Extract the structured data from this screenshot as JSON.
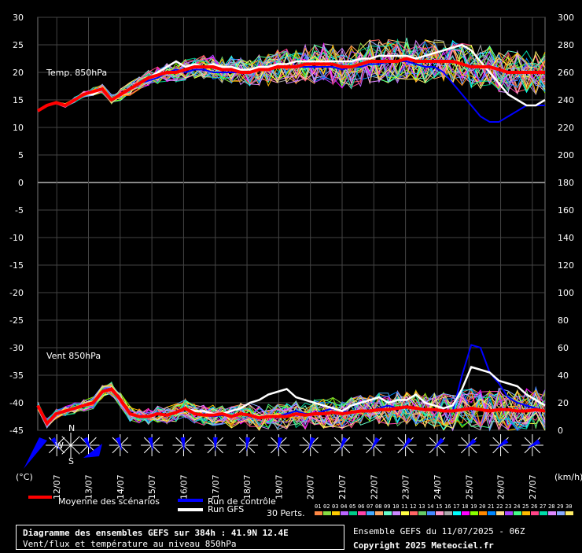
{
  "chart_data": {
    "type": "line",
    "title": "Diagramme des ensembles GEFS sur 384h : 41.9N 12.4E",
    "subtitle": "Vent/flux et température au niveau 850hPa",
    "panel_temp_label": "Temp. 850hPa",
    "panel_wind_label": "Vent 850hPa",
    "left_unit": "(°C)",
    "right_unit": "(km/h)",
    "left_ticks": [
      30,
      25,
      20,
      15,
      10,
      5,
      0,
      -5,
      -10,
      -15,
      -20,
      -25,
      -30,
      -35,
      -40,
      -45
    ],
    "right_ticks": [
      300,
      280,
      260,
      240,
      220,
      200,
      180,
      160,
      140,
      120,
      100,
      80,
      60,
      40,
      20,
      0
    ],
    "x_labels": [
      "12/07",
      "13/07",
      "14/07",
      "15/07",
      "16/07",
      "17/07",
      "18/07",
      "19/07",
      "20/07",
      "21/07",
      "22/07",
      "23/07",
      "24/07",
      "25/07",
      "26/07",
      "27/07"
    ],
    "ylim_temp": [
      -45,
      30
    ],
    "ylim_wind_kmh": [
      0,
      300
    ],
    "x_range_hours": [
      0,
      384
    ],
    "temp_mean_series": {
      "name": "Moyenne des scénarios",
      "color": "#ff0000",
      "values": [
        13,
        14,
        14.5,
        14,
        15,
        16,
        16.5,
        17,
        15,
        16,
        17,
        18,
        19,
        19.5,
        20,
        20,
        20.5,
        21,
        21,
        21,
        20.5,
        20.5,
        20,
        20,
        20.5,
        20.5,
        21,
        21,
        21,
        21.5,
        21.5,
        21.5,
        21.5,
        21,
        21,
        21.5,
        22,
        22,
        22,
        22,
        22.5,
        22,
        22,
        22,
        22,
        22,
        21.5,
        21,
        21,
        21,
        20.5,
        20,
        20,
        20,
        20,
        20
      ]
    },
    "temp_gfs_series": {
      "name": "Run GFS",
      "color": "#ffffff",
      "values": [
        13,
        14,
        14.5,
        14,
        15,
        16,
        16,
        17,
        15,
        16,
        17,
        18,
        19,
        20,
        21,
        22,
        21,
        21.5,
        21,
        21.5,
        21,
        21,
        20.5,
        20.5,
        21,
        21,
        21.5,
        21.5,
        22,
        22,
        22,
        22,
        22,
        22,
        22,
        22.5,
        22.5,
        23,
        23,
        23,
        23,
        22.5,
        23,
        23.5,
        24,
        24.5,
        25,
        24,
        22,
        20,
        18,
        16,
        15,
        14,
        14,
        15
      ]
    },
    "temp_control_series": {
      "name": "Run de contrôle",
      "color": "#0000ff",
      "values": [
        13,
        14,
        14.5,
        14,
        15,
        16,
        16,
        17,
        15,
        16,
        17,
        18,
        18.5,
        19,
        20,
        20.5,
        20,
        20.5,
        20.5,
        20,
        20,
        20,
        20,
        20,
        20.5,
        20.5,
        21,
        21,
        21,
        21,
        21,
        21,
        21,
        20.5,
        21,
        21,
        21.5,
        21.5,
        22,
        22,
        22,
        21.5,
        21,
        21,
        20,
        18,
        16,
        14,
        12,
        11,
        11,
        12,
        13,
        14,
        14,
        14
      ]
    },
    "wind_mean_series": {
      "name": "Moyenne des scénarios",
      "color": "#ff0000",
      "values": [
        18,
        5,
        12,
        14,
        16,
        18,
        20,
        28,
        30,
        22,
        12,
        10,
        10,
        12,
        11,
        13,
        16,
        12,
        11,
        11,
        12,
        10,
        12,
        11,
        9,
        10,
        10,
        10,
        12,
        11,
        12,
        12,
        13,
        12,
        13,
        14,
        14,
        15,
        15,
        16,
        17,
        16,
        15,
        15,
        14,
        14,
        15,
        16,
        15,
        14,
        15,
        15,
        14,
        14,
        15,
        14
      ]
    },
    "wind_gfs_series": {
      "name": "Run GFS",
      "color": "#ffffff",
      "values": [
        18,
        5,
        12,
        14,
        16,
        18,
        20,
        28,
        30,
        22,
        12,
        10,
        10,
        12,
        11,
        13,
        16,
        14,
        14,
        12,
        12,
        14,
        16,
        20,
        22,
        26,
        28,
        30,
        24,
        22,
        20,
        18,
        16,
        14,
        18,
        20,
        22,
        24,
        20,
        22,
        22,
        26,
        20,
        18,
        16,
        18,
        30,
        46,
        44,
        42,
        36,
        34,
        32,
        26,
        22,
        18
      ]
    },
    "wind_control_series": {
      "name": "Run de contrôle",
      "color": "#0000ff",
      "values": [
        18,
        5,
        12,
        14,
        16,
        18,
        20,
        28,
        30,
        22,
        12,
        10,
        10,
        12,
        11,
        13,
        16,
        12,
        11,
        10,
        11,
        10,
        12,
        11,
        9,
        10,
        10,
        12,
        14,
        12,
        12,
        14,
        16,
        14,
        13,
        14,
        14,
        16,
        18,
        16,
        17,
        16,
        15,
        14,
        14,
        14,
        40,
        62,
        60,
        42,
        34,
        24,
        20,
        18,
        16,
        14
      ]
    }
  },
  "legend": {
    "mean_label": "Moyenne des scénarios",
    "control_label": "Run de contrôle",
    "gfs_label": "Run GFS",
    "perts_label": "30 Perts.",
    "pert_numbers": [
      "01",
      "02",
      "03",
      "04",
      "05",
      "06",
      "07",
      "08",
      "09",
      "10",
      "11",
      "12",
      "13",
      "14",
      "15",
      "16",
      "17",
      "18",
      "19",
      "20",
      "21",
      "22",
      "23",
      "24",
      "25",
      "26",
      "27",
      "28",
      "29",
      "30"
    ],
    "pert_colors": [
      "#ff8844",
      "#88dd44",
      "#ffcc00",
      "#bb66ff",
      "#00cc88",
      "#ff44aa",
      "#44aaff",
      "#ffaa66",
      "#66ffcc",
      "#cc88ff",
      "#ffff44",
      "#ff6666",
      "#66cc66",
      "#4488ff",
      "#ff99cc",
      "#aaaaaa",
      "#00ffff",
      "#ff00ff",
      "#88ff00",
      "#ff8800",
      "#0088ff",
      "#ffdd88",
      "#aa44ff",
      "#44ff88",
      "#ffbb00",
      "#ff4488",
      "#00ddaa",
      "#dd88ff",
      "#88aaff",
      "#ffee66"
    ]
  },
  "compass": {
    "n": "N",
    "w": "W",
    "s": "S"
  },
  "footer": {
    "title": "Diagramme des ensembles GEFS sur 384h : 41.9N 12.4E",
    "subtitle": "Vent/flux et température au niveau 850hPa",
    "run": "Ensemble GEFS du 11/07/2025 - 06Z",
    "copyright": "Copyright 2025 Meteociel.fr"
  },
  "colors": {
    "mean": "#ff0000",
    "control": "#0000ff",
    "gfs": "#ffffff",
    "grid": "#555555",
    "wind_arrow": "#0000ff"
  }
}
